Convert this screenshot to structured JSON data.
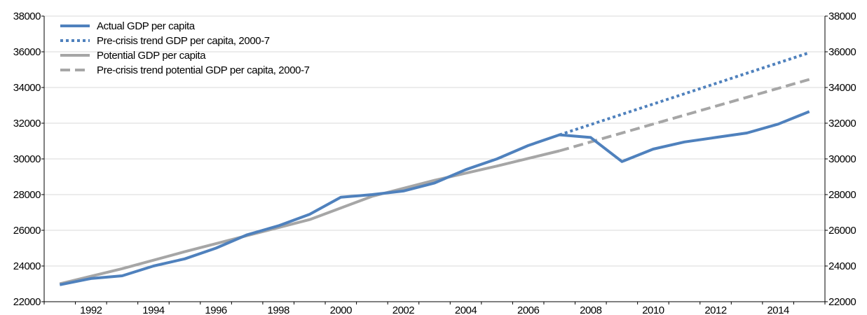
{
  "chart_data": {
    "type": "line",
    "x": [
      1991,
      1992,
      1993,
      1994,
      1995,
      1996,
      1997,
      1998,
      1999,
      2000,
      2001,
      2002,
      2003,
      2004,
      2005,
      2006,
      2007,
      2008,
      2009,
      2010,
      2011,
      2012,
      2013,
      2014,
      2015
    ],
    "xticks": [
      1992,
      1994,
      1996,
      1998,
      2000,
      2002,
      2004,
      2006,
      2008,
      2010,
      2012,
      2014
    ],
    "xlim": [
      1990.5,
      2015.5
    ],
    "ylim": [
      22000,
      38000
    ],
    "yticks": [
      22000,
      24000,
      26000,
      28000,
      30000,
      32000,
      34000,
      36000,
      38000
    ],
    "grid": true,
    "legend_position": "top-left",
    "series": [
      {
        "name": "Actual GDP per capita",
        "style": "solid",
        "color": "#4F81BD",
        "x": [
          1991,
          1992,
          1993,
          1994,
          1995,
          1996,
          1997,
          1998,
          1999,
          2000,
          2001,
          2002,
          2003,
          2004,
          2005,
          2006,
          2007,
          2008,
          2009,
          2010,
          2011,
          2012,
          2013,
          2014,
          2015
        ],
        "values": [
          22950,
          23300,
          23450,
          24000,
          24400,
          25000,
          25750,
          26250,
          26900,
          27850,
          28000,
          28200,
          28650,
          29400,
          30000,
          30750,
          31350,
          31200,
          29850,
          30550,
          30950,
          31200,
          31450,
          31950,
          32650
        ]
      },
      {
        "name": "Pre-crisis trend GDP per capita, 2000-7",
        "style": "dotted",
        "color": "#4F81BD",
        "x": [
          2007,
          2015
        ],
        "values": [
          31350,
          35950
        ]
      },
      {
        "name": "Potential GDP per capita",
        "style": "solid",
        "color": "#A6A6A6",
        "x": [
          1991,
          1993,
          1995,
          1997,
          1999,
          2001,
          2003,
          2005,
          2007
        ],
        "values": [
          23000,
          23850,
          24800,
          25700,
          26600,
          27900,
          28800,
          29600,
          30450
        ]
      },
      {
        "name": "Pre-crisis trend potential GDP per capita, 2000-7",
        "style": "dashed",
        "color": "#A6A6A6",
        "x": [
          2007,
          2015
        ],
        "values": [
          30450,
          34450
        ]
      }
    ]
  }
}
